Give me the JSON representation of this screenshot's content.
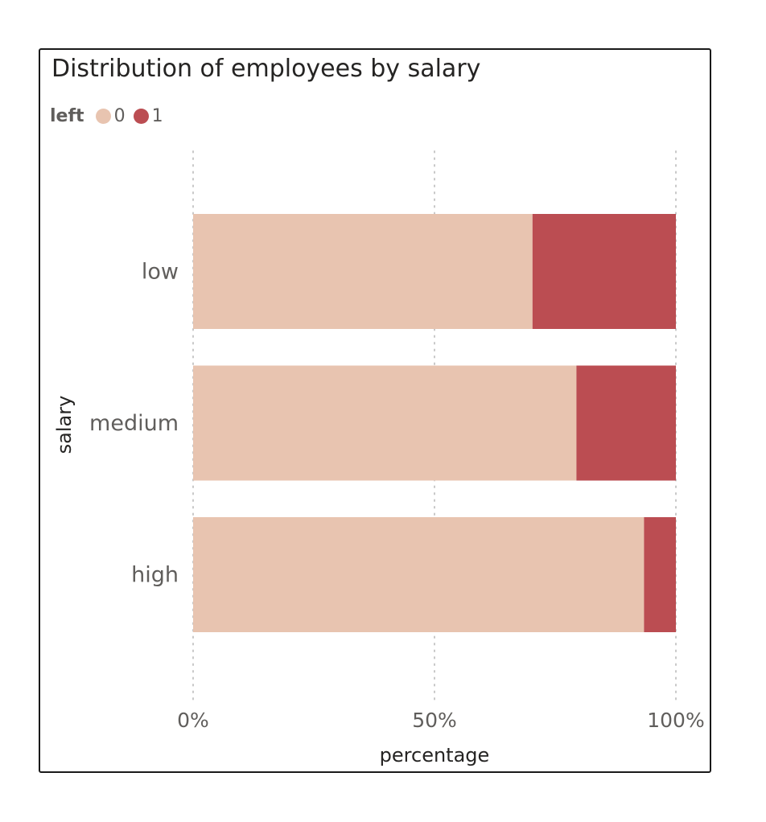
{
  "visual": {
    "title": "Distribution of employees by salary",
    "legend": {
      "title": "left",
      "items": [
        {
          "label": "0",
          "color": "#E8C4B0"
        },
        {
          "label": "1",
          "color": "#BB4D52"
        }
      ]
    }
  },
  "chart_data": {
    "type": "bar",
    "orientation": "horizontal",
    "stacked": "100%",
    "title": "Distribution of employees by salary",
    "xlabel": "percentage",
    "ylabel": "salary",
    "categories": [
      "low",
      "medium",
      "high"
    ],
    "series": [
      {
        "name": "0",
        "color": "#E8C4B0",
        "values": [
          70.3,
          79.4,
          93.4
        ]
      },
      {
        "name": "1",
        "color": "#BB4D52",
        "values": [
          29.7,
          20.6,
          6.6
        ]
      }
    ],
    "xlim": [
      0,
      100
    ],
    "xticks": [
      0,
      50,
      100
    ],
    "xtick_labels": [
      "0%",
      "50%",
      "100%"
    ],
    "grid": "vertical dotted",
    "legend_position": "top-left"
  }
}
